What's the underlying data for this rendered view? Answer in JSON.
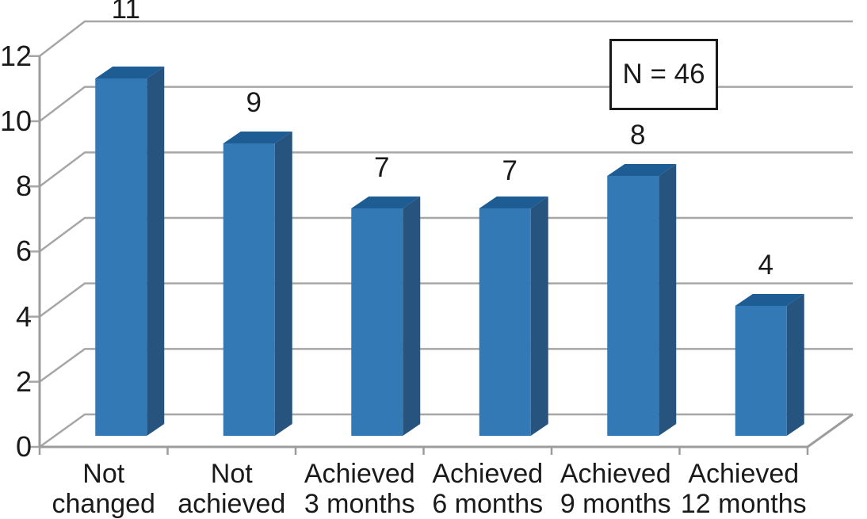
{
  "chart_data": {
    "type": "bar",
    "style": "3d-column",
    "title": "",
    "xlabel": "",
    "ylabel": "",
    "categories": [
      "Not changed",
      "Not achieved",
      "Achieved 3 months",
      "Achieved 6 months",
      "Achieved 9 months",
      "Achieved 12 months"
    ],
    "values": [
      11,
      9,
      7,
      7,
      8,
      4
    ],
    "data_labels": [
      "11",
      "9",
      "7",
      "7",
      "8",
      "4"
    ],
    "annotation": "N = 46",
    "y_axis": {
      "min": 0,
      "max": 12,
      "tick_step": 2,
      "ticks": [
        "0",
        "2",
        "4",
        "6",
        "8",
        "10",
        "12"
      ]
    },
    "grid": true,
    "legend_position": "none",
    "colors": {
      "bar_front": "#3379B6",
      "bar_top": "#1E5C94",
      "bar_side": "#27537F",
      "gridline": "#A6A6A6",
      "axis": "#9C9C9C",
      "text": "#1A1A1A",
      "background": "#FFFFFF",
      "annotation_border": "#1A1A1A",
      "annotation_background": "#FFFFFF"
    }
  }
}
